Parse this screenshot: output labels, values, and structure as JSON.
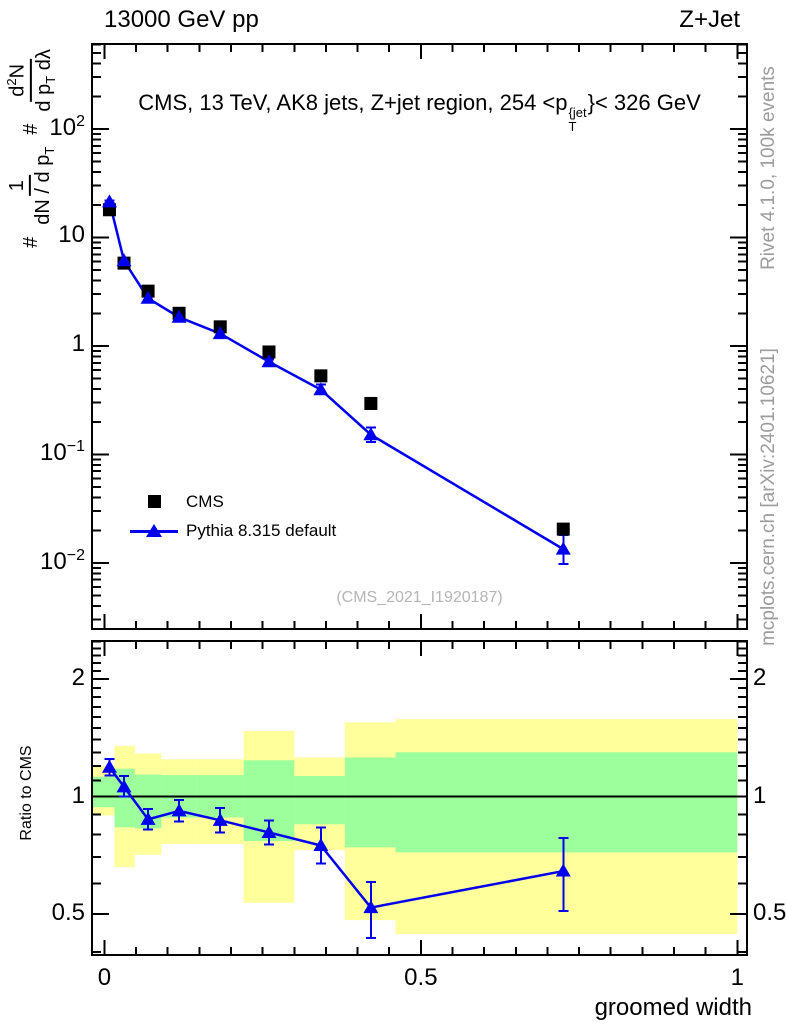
{
  "header": {
    "left_label": "13000 GeV pp",
    "right_label": "Z+Jet"
  },
  "heading": {
    "part1": "CMS, 13 TeV, AK8 jets, Z+jet region, 254 <p",
    "sup": "{jet",
    "sub": "T",
    "part2": "}< 326 GeV"
  },
  "y_axis_title": {
    "hash1": "#",
    "frac1": {
      "num": "1",
      "den_main": "dN / d p",
      "den_sub": "T"
    },
    "hash2": "#",
    "frac2": {
      "num_main": "d",
      "num_sup": "2",
      "num_tail": "N",
      "den_a": "d p",
      "den_sub": "T",
      "den_b": " dλ"
    }
  },
  "legend": {
    "entries": [
      {
        "label": "CMS"
      },
      {
        "label": "Pythia 8.315 default"
      }
    ]
  },
  "watermark": "(CMS_2021_I1920187)",
  "side_notes": {
    "top_right": "Rivet 4.1.0,  100k events",
    "bottom_right": "mcplots.cern.ch [arXiv:2401.10621]"
  },
  "ratio_axis_label": "Ratio to CMS",
  "x_axis_title": "groomed width",
  "colors": {
    "accent_blue": "#0000ee",
    "band_yellow": "#ffff9b",
    "band_green": "#9cff9c",
    "gray_text": "#9c9c9c",
    "watermark_gray": "#b5b5b5",
    "frame": "#000000"
  },
  "chart_data": {
    "type": "line",
    "title": "CMS, 13 TeV, AK8 jets, Z+jet region, 254 < pT{jet} < 326 GeV",
    "xlabel": "groomed width",
    "ylabel": "# 1/(dN/dpT) # d2N/(dpT dlambda)",
    "legend_position": "left-middle",
    "grid": false,
    "xlim": [
      -0.0196,
      1.0153
    ],
    "main_ylim": [
      0.00246,
      607
    ],
    "x_ticks": [
      {
        "v": 0,
        "label": "0"
      },
      {
        "v": 0.5,
        "label": "0.5"
      },
      {
        "v": 1,
        "label": "1"
      }
    ],
    "y_ticks": [
      {
        "v": 100,
        "base": "10",
        "exp": "2"
      },
      {
        "v": 10,
        "base": "10",
        "exp": ""
      },
      {
        "v": 1,
        "base": "1",
        "exp": ""
      },
      {
        "v": 0.1,
        "base": "10",
        "exp": "−1"
      },
      {
        "v": 0.01,
        "base": "10",
        "exp": "−2"
      }
    ],
    "x": [
      0.008,
      0.031,
      0.069,
      0.118,
      0.183,
      0.26,
      0.342,
      0.421,
      0.725
    ],
    "series": [
      {
        "name": "CMS",
        "marker": "square",
        "color": "#000000",
        "values": [
          18.0,
          5.8,
          3.2,
          2.0,
          1.5,
          0.88,
          0.53,
          0.295,
          0.0205
        ]
      },
      {
        "name": "Pythia 8.315 default",
        "marker": "triangle",
        "color": "#0000ee",
        "values": [
          21.3,
          6.1,
          2.75,
          1.84,
          1.3,
          0.715,
          0.395,
          0.152,
          0.0134
        ],
        "err_up": [
          0.6,
          0.2,
          0.1,
          0.06,
          0.05,
          0.035,
          0.045,
          0.026,
          0.0047
        ],
        "err_dn": [
          0.6,
          0.2,
          0.1,
          0.06,
          0.05,
          0.035,
          0.035,
          0.022,
          0.0036
        ]
      }
    ],
    "ratio": {
      "ylim": [
        0.3931,
        2.506
      ],
      "ticks": [
        {
          "v": 2,
          "label": "2"
        },
        {
          "v": 1,
          "label": "1"
        },
        {
          "v": 0.5,
          "label": "0.5"
        }
      ],
      "reference": 1,
      "values": [
        1.19,
        1.06,
        0.875,
        0.92,
        0.87,
        0.81,
        0.75,
        0.52,
        0.645
      ],
      "err_up": [
        0.06,
        0.07,
        0.055,
        0.06,
        0.065,
        0.06,
        0.085,
        0.085,
        0.14
      ],
      "err_dn": [
        0.055,
        0.06,
        0.05,
        0.055,
        0.06,
        0.055,
        0.075,
        0.085,
        0.135
      ],
      "bands": {
        "edges": [
          -0.0196,
          0.016,
          0.048,
          0.09,
          0.145,
          0.22,
          0.3,
          0.38,
          0.46,
          1.0
        ],
        "yellow_lo": [
          0.895,
          0.66,
          0.71,
          0.757,
          0.757,
          0.535,
          0.73,
          0.483,
          0.445
        ],
        "yellow_hi": [
          1.2,
          1.35,
          1.29,
          1.247,
          1.247,
          1.474,
          1.26,
          1.55,
          1.58
        ],
        "green_lo": [
          0.94,
          0.835,
          0.83,
          0.885,
          0.885,
          0.77,
          0.85,
          0.742,
          0.72
        ],
        "green_hi": [
          1.125,
          1.18,
          1.14,
          1.136,
          1.136,
          1.24,
          1.13,
          1.26,
          1.3
        ]
      }
    }
  }
}
